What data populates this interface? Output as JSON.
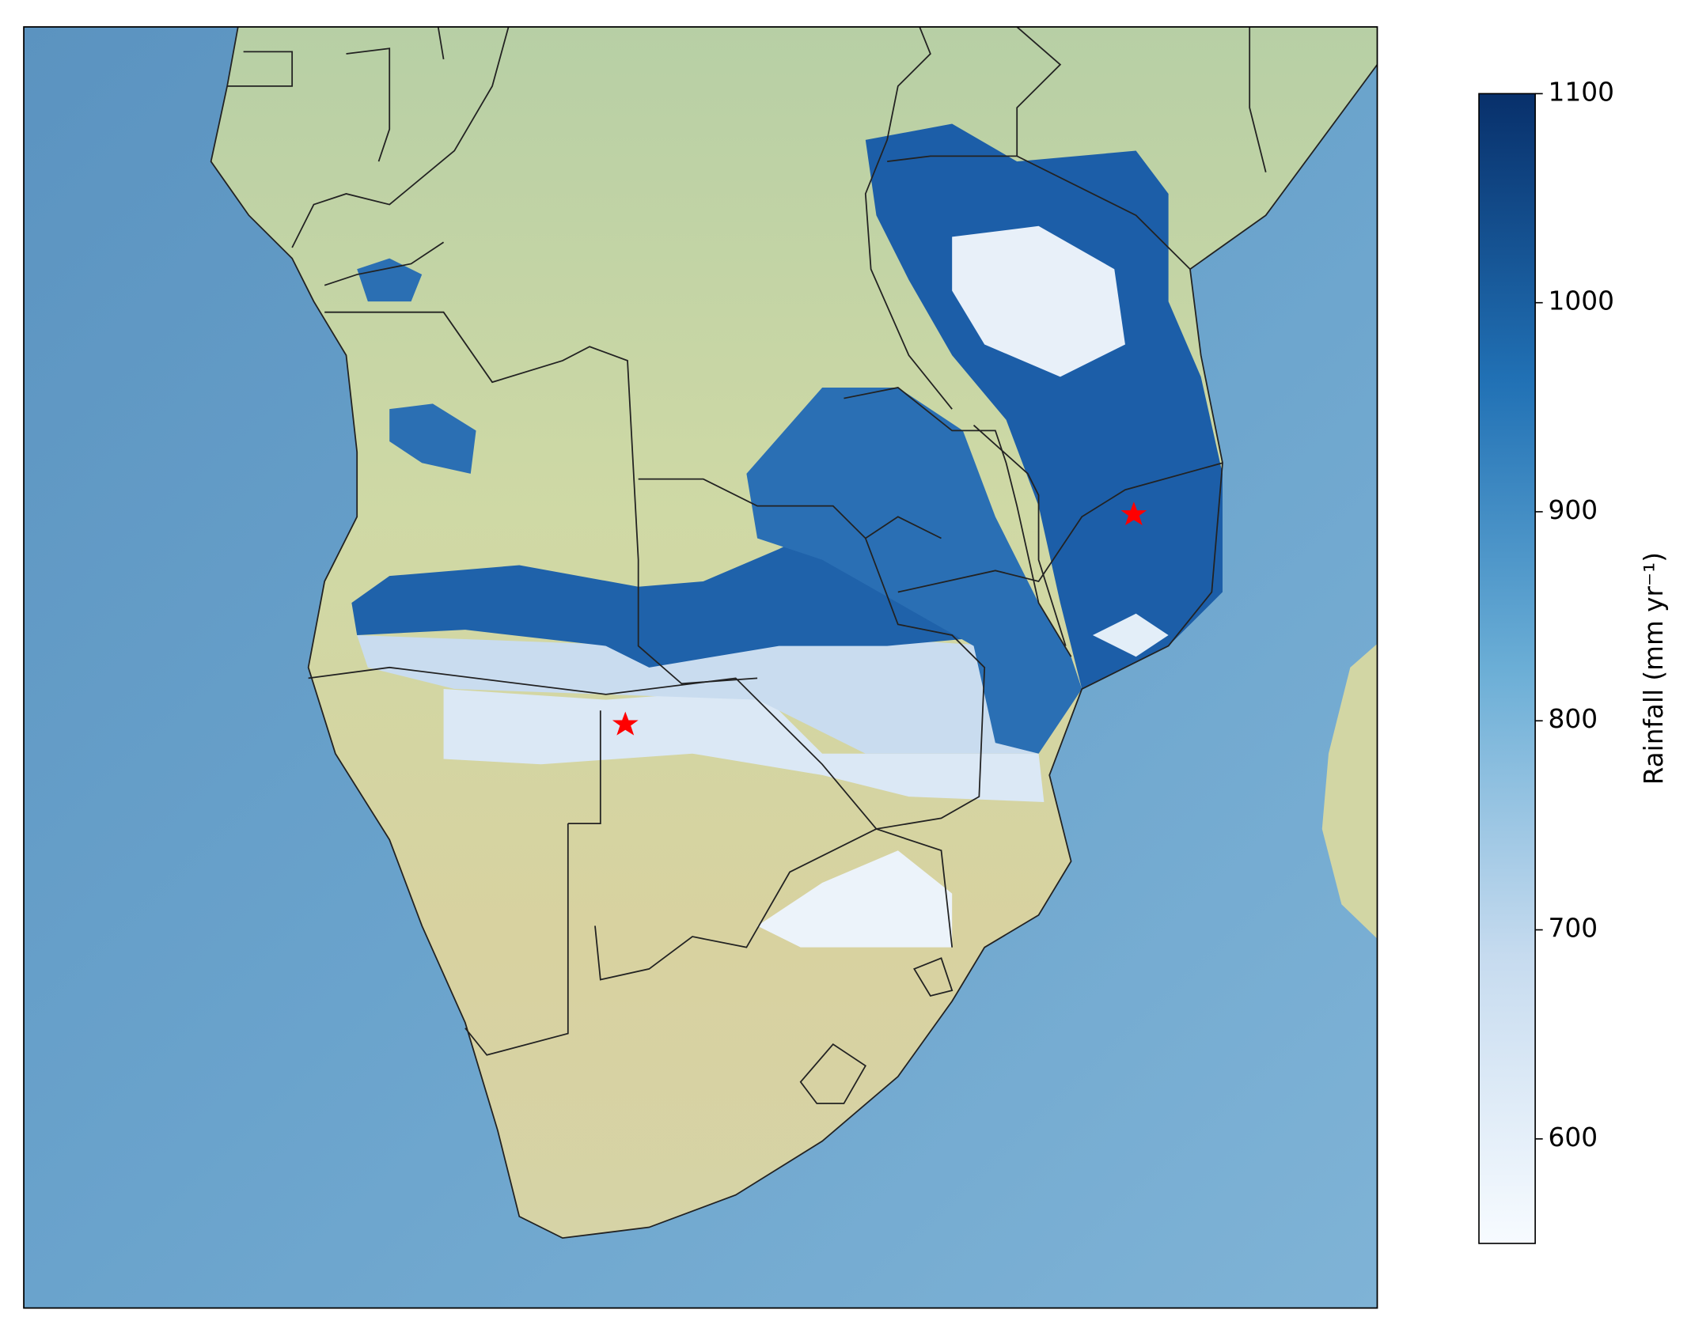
{
  "colorbar": {
    "label": "Rainfall (mm yr⁻¹)",
    "clim": [
      550,
      1100
    ],
    "ticks": [
      600,
      700,
      800,
      900,
      1000,
      1100
    ],
    "cmap": [
      "#f7fbff",
      "#c6dbef",
      "#6baed6",
      "#2171b5",
      "#08306b"
    ]
  }
}
